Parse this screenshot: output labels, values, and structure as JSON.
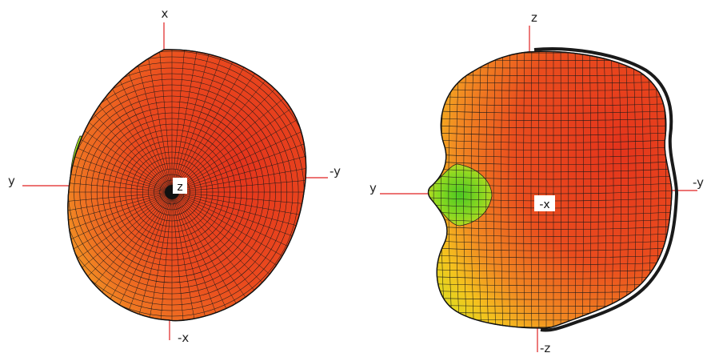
{
  "figures": [
    {
      "id": "left",
      "axes": {
        "top": "x",
        "bottom": "-x",
        "left": "y",
        "right": "-y",
        "center": "z"
      },
      "colors": {
        "primary": "#e8411e",
        "secondary": "#f07a22",
        "accent": "#66cc22",
        "axis": "#e02020",
        "mesh": "#1a1a1a"
      }
    },
    {
      "id": "right",
      "axes": {
        "top": "z",
        "bottom": "-z",
        "left": "y",
        "right": "-y",
        "center": "-x"
      },
      "colors": {
        "primary": "#e8411e",
        "secondary": "#f3a020",
        "accent": "#66cc22",
        "axis": "#e02020",
        "mesh": "#1a1a1a"
      }
    }
  ]
}
